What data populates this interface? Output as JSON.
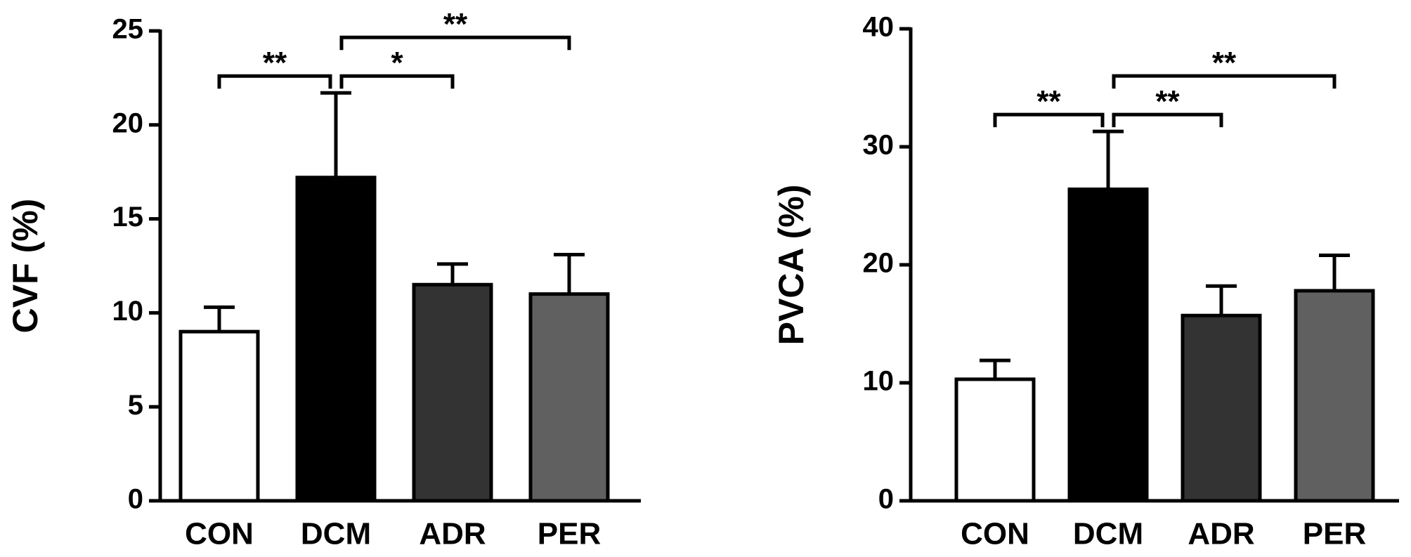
{
  "chart_data": [
    {
      "type": "bar",
      "ylabel": "CVF (%)",
      "categories": [
        "CON",
        "DCM",
        "ADR",
        "PER"
      ],
      "values": [
        9.0,
        17.2,
        11.5,
        11.0
      ],
      "errors": [
        1.3,
        4.5,
        1.1,
        2.1
      ],
      "colors": [
        "#ffffff",
        "#000000",
        "#333333",
        "#606060"
      ],
      "ylim": [
        0,
        25
      ],
      "yticks": [
        0,
        5,
        10,
        15,
        20,
        25
      ],
      "annotations": [
        {
          "label": "**",
          "from": 0,
          "to": 1
        },
        {
          "label": "*",
          "from": 1,
          "to": 2
        },
        {
          "label": "**",
          "from": 1,
          "to": 3
        }
      ]
    },
    {
      "type": "bar",
      "ylabel": "PVCA (%)",
      "categories": [
        "CON",
        "DCM",
        "ADR",
        "PER"
      ],
      "values": [
        10.3,
        26.4,
        15.7,
        17.8
      ],
      "errors": [
        1.6,
        4.9,
        2.5,
        3.0
      ],
      "colors": [
        "#ffffff",
        "#000000",
        "#333333",
        "#606060"
      ],
      "ylim": [
        0,
        40
      ],
      "yticks": [
        0,
        10,
        20,
        30,
        40
      ],
      "annotations": [
        {
          "label": "**",
          "from": 0,
          "to": 1
        },
        {
          "label": "**",
          "from": 1,
          "to": 2
        },
        {
          "label": "**",
          "from": 1,
          "to": 3
        }
      ]
    }
  ]
}
